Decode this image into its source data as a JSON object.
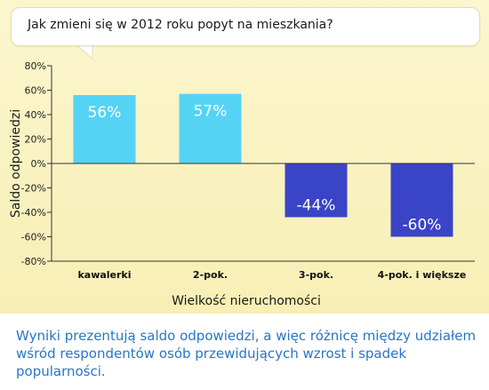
{
  "question": "Jak zmieni się w 2012 roku popyt na mieszkania?",
  "caption": "Wyniki prezentują saldo odpowiedzi, a więc różnicę między udziałem wśród respondentów osób przewidujących wzrost i spadek popularności.",
  "colors": {
    "positive_bar": "#55d3f5",
    "negative_bar": "#3a44c6",
    "caption": "#2a74c8",
    "panel": "#f9f2c2"
  },
  "chart_data": {
    "type": "bar",
    "title": "Jak zmieni się w 2012 roku popyt na mieszkania?",
    "xlabel": "Wielkość nieruchomości",
    "ylabel": "Saldo odpowiedzi",
    "categories": [
      "kawalerki",
      "2-pok.",
      "3-pok.",
      "4-pok. i większe"
    ],
    "values": [
      56,
      57,
      -44,
      -60
    ],
    "data_labels": [
      "56%",
      "57%",
      "-44%",
      "-60%"
    ],
    "ylim": [
      -80,
      80
    ],
    "yticks": [
      80,
      60,
      40,
      20,
      0,
      -20,
      -40,
      -60,
      -80
    ],
    "ytick_labels": [
      "80%",
      "60%",
      "40%",
      "20%",
      "0%",
      "-20%",
      "-40%",
      "-60%",
      "-80%"
    ],
    "grid": false,
    "legend": "none"
  }
}
